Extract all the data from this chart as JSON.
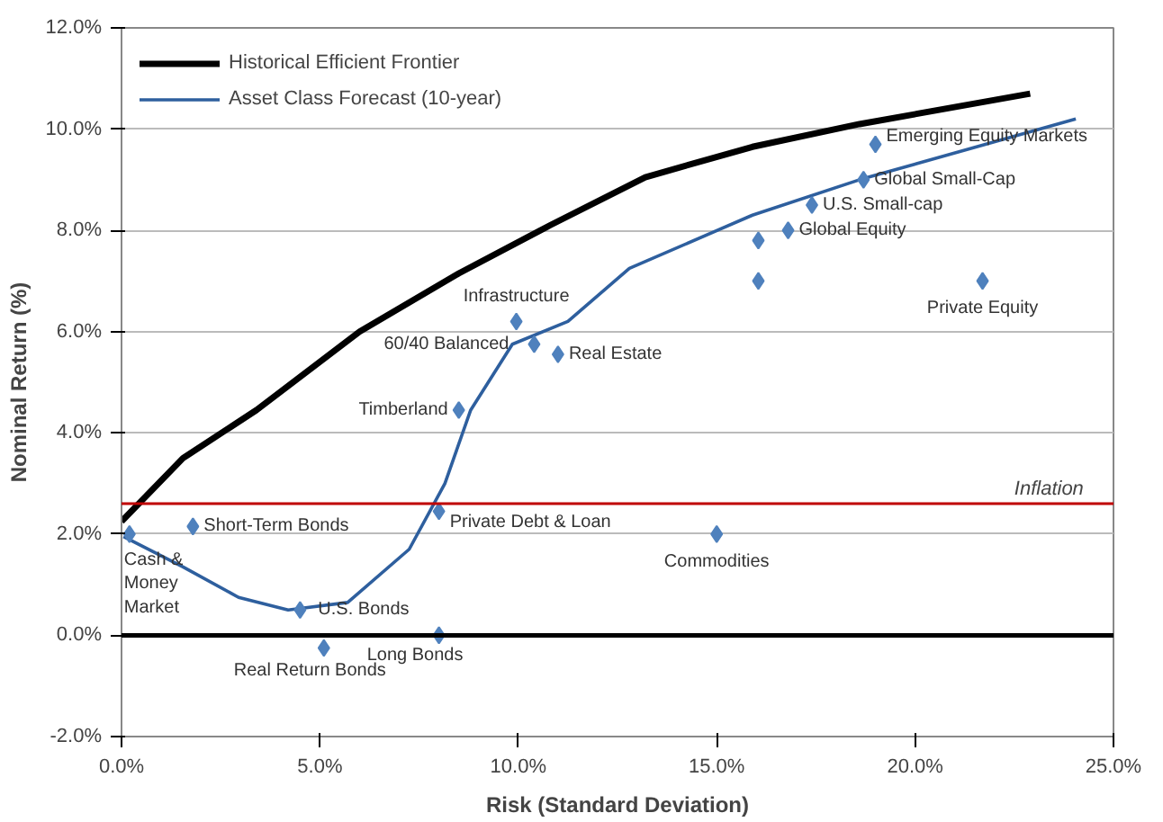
{
  "chart_data": {
    "type": "scatter",
    "xlabel": "Risk (Standard Deviation)",
    "ylabel": "Nominal Return (%)",
    "xlim": [
      0,
      25
    ],
    "ylim": [
      -2,
      12
    ],
    "xticks": [
      {
        "value": 0,
        "label": "0.0%"
      },
      {
        "value": 5,
        "label": "5.0%"
      },
      {
        "value": 10,
        "label": "10.0%"
      },
      {
        "value": 15,
        "label": "15.0%"
      },
      {
        "value": 20,
        "label": "20.0%"
      },
      {
        "value": 25,
        "label": "25.0%"
      }
    ],
    "yticks": [
      {
        "value": -2,
        "label": "-2.0%"
      },
      {
        "value": 0,
        "label": "0.0%"
      },
      {
        "value": 2,
        "label": "2.0%"
      },
      {
        "value": 4,
        "label": "4.0%"
      },
      {
        "value": 6,
        "label": "6.0%"
      },
      {
        "value": 8,
        "label": "8.0%"
      },
      {
        "value": 10,
        "label": "10.0%"
      },
      {
        "value": 12,
        "label": "12.0%"
      }
    ],
    "grid": "y",
    "legend": "top left",
    "series": [
      {
        "name": "Historical Efficient Frontier",
        "type": "line",
        "color": "#000000",
        "x": [
          0,
          1.55,
          3.4,
          6.0,
          8.5,
          10.8,
          13.2,
          15.9,
          18.6,
          22.9
        ],
        "values": [
          2.25,
          3.5,
          4.45,
          6.0,
          7.15,
          8.1,
          9.05,
          9.65,
          10.1,
          10.7
        ]
      },
      {
        "name": "Asset Class Forecast (10-year)",
        "type": "line",
        "color": "#2e5f9e",
        "x": [
          0.05,
          1.55,
          2.95,
          4.2,
          5.7,
          7.25,
          8.15,
          8.8,
          9.85,
          11.25,
          12.8,
          15.9,
          18.6,
          24.05
        ],
        "values": [
          1.95,
          1.35,
          0.75,
          0.5,
          0.65,
          1.7,
          3.0,
          4.45,
          5.75,
          6.2,
          7.25,
          8.3,
          9.0,
          10.2
        ]
      },
      {
        "color": "#4f81bd",
        "x": [
          0.2,
          1.8,
          4.5,
          5.1,
          8.0,
          8.0,
          8.5,
          9.95,
          10.4,
          11.0,
          15.0,
          16.05,
          16.05,
          16.8,
          17.4,
          18.7,
          19.0,
          21.7
        ],
        "values": [
          2.0,
          2.15,
          0.5,
          -0.25,
          0.0,
          2.45,
          4.45,
          6.2,
          5.75,
          5.55,
          2.0,
          7.8,
          7.0,
          8.0,
          8.5,
          9.0,
          9.7,
          7.0
        ]
      }
    ],
    "ref_lines": [
      {
        "axis": "y",
        "value": 0,
        "color": "#000000"
      },
      {
        "axis": "y",
        "value": 2.6,
        "color": "#c00000",
        "label": "Inflation"
      }
    ],
    "annotations": [
      {
        "text": "Cash &\nMoney\nMarket",
        "x": 0.2,
        "y": 2.0
      },
      {
        "text": "Short-Term Bonds",
        "x": 1.8,
        "y": 2.15
      },
      {
        "text": "U.S. Bonds",
        "x": 4.5,
        "y": 0.5
      },
      {
        "text": "Real Return Bonds",
        "x": 5.1,
        "y": -0.25
      },
      {
        "text": "Long Bonds",
        "x": 8.0,
        "y": 0.0
      },
      {
        "text": "Private Debt & Loan",
        "x": 8.0,
        "y": 2.45
      },
      {
        "text": "Timberland",
        "x": 8.5,
        "y": 4.45
      },
      {
        "text": "Infrastructure",
        "x": 9.95,
        "y": 6.2
      },
      {
        "text": "60/40 Balanced",
        "x": 10.4,
        "y": 5.75
      },
      {
        "text": "Real Estate",
        "x": 11.0,
        "y": 5.55
      },
      {
        "text": "Commodities",
        "x": 15.0,
        "y": 2.0
      },
      {
        "text": "Global Equity",
        "x": 16.8,
        "y": 8.0
      },
      {
        "text": "U.S. Small-cap",
        "x": 17.4,
        "y": 8.5
      },
      {
        "text": "Global Small-Cap",
        "x": 18.7,
        "y": 9.0
      },
      {
        "text": "Emerging Equity Markets",
        "x": 19.0,
        "y": 9.7
      },
      {
        "text": "Private Equity",
        "x": 21.7,
        "y": 7.0
      }
    ]
  }
}
